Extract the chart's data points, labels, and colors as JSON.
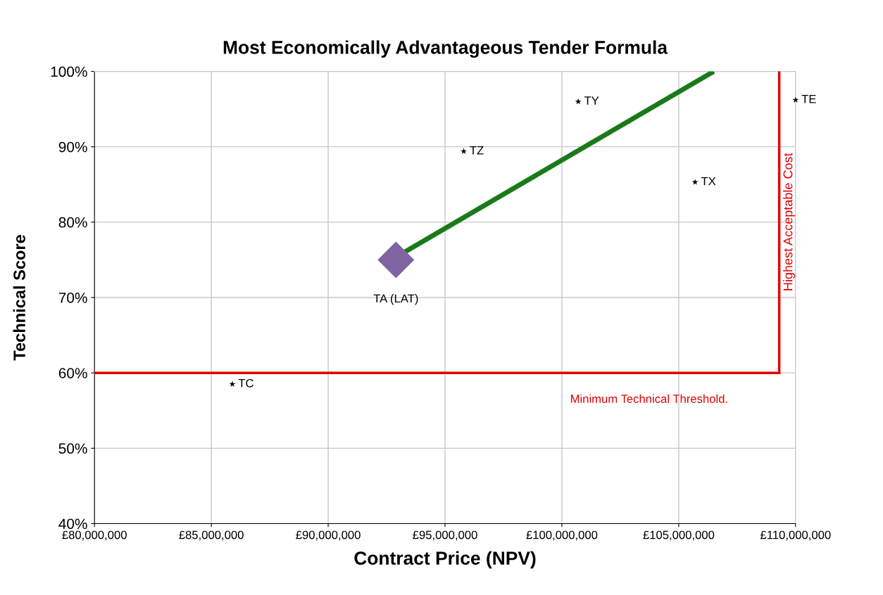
{
  "chart_data": {
    "type": "scatter",
    "title": "Most Economically Advantageous Tender Formula",
    "xlabel": "Contract Price (NPV)",
    "ylabel": "Technical Score",
    "series": [
      {
        "name": "TA (LAT)",
        "marker": "diamond",
        "color": "#8064a2",
        "x": [
          92900000
        ],
        "values": [
          75
        ]
      },
      {
        "marker": "star",
        "color": "#000000",
        "x": [
          100700000,
          95800000,
          105700000,
          110000000,
          85900000
        ],
        "values": [
          96,
          89.4,
          85.3,
          96.2,
          58.5
        ],
        "value_labels": [
          "TY",
          "TZ",
          "TX",
          "TE",
          "TC"
        ]
      },
      {
        "type": "line",
        "color": "#1a7a1a",
        "marker": "none",
        "x": [
          93200000,
          106500000
        ],
        "values": [
          75.9,
          100
        ]
      }
    ],
    "ref_lines": [
      {
        "axis": "y",
        "value": 60,
        "label": "Minimum Technical Threshold.",
        "color": "#e00000"
      },
      {
        "axis": "x",
        "value": 109300000,
        "label": "Highest Acceptable Cost",
        "color": "#e00000"
      }
    ],
    "xlim": [
      80000000,
      110000000
    ],
    "xticks": [
      {
        "value": 80000000,
        "label": "£80,000,000"
      },
      {
        "value": 85000000,
        "label": "£85,000,000"
      },
      {
        "value": 90000000,
        "label": "£90,000,000"
      },
      {
        "value": 95000000,
        "label": "£95,000,000"
      },
      {
        "value": 100000000,
        "label": "£100,000,000"
      },
      {
        "value": 105000000,
        "label": "£105,000,000"
      },
      {
        "value": 110000000,
        "label": "£110,000,000"
      }
    ],
    "ylim": [
      40,
      100
    ],
    "yticks": [
      {
        "value": 40,
        "label": "40%"
      },
      {
        "value": 50,
        "label": "50%"
      },
      {
        "value": 60,
        "label": "60%"
      },
      {
        "value": 70,
        "label": "70%"
      },
      {
        "value": 80,
        "label": "80%"
      },
      {
        "value": 90,
        "label": "90%"
      },
      {
        "value": 100,
        "label": "100%"
      }
    ],
    "grid": true,
    "legend": false
  }
}
